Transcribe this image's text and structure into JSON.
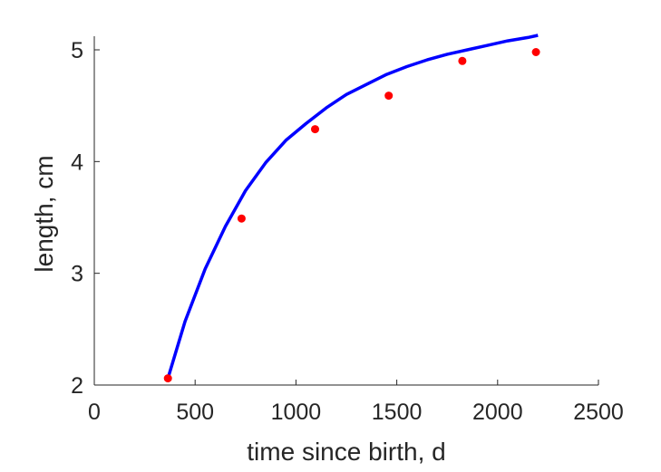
{
  "chart_data": {
    "type": "scatter",
    "xlabel": "time since birth, d",
    "ylabel": "length, cm",
    "xlim": [
      0,
      2500
    ],
    "ylim": [
      2,
      5.15
    ],
    "xticks": [
      0,
      500,
      1000,
      1500,
      2000,
      2500
    ],
    "yticks": [
      2,
      3,
      4,
      5
    ],
    "grid": false,
    "series": [
      {
        "kind": "points",
        "color": "#ff0000",
        "x": [
          365,
          730,
          1095,
          1460,
          1825,
          2190
        ],
        "y": [
          2.06,
          3.49,
          4.29,
          4.59,
          4.9,
          4.98
        ]
      },
      {
        "kind": "line",
        "color": "#0000ff",
        "x": [
          365,
          450,
          550,
          650,
          750,
          850,
          950,
          1050,
          1150,
          1250,
          1350,
          1450,
          1550,
          1650,
          1750,
          1850,
          1950,
          2050,
          2150,
          2200
        ],
        "y": [
          2.06,
          2.57,
          3.04,
          3.42,
          3.74,
          3.99,
          4.19,
          4.34,
          4.48,
          4.6,
          4.69,
          4.78,
          4.85,
          4.91,
          4.96,
          5.0,
          5.04,
          5.08,
          5.11,
          5.13
        ]
      }
    ]
  }
}
